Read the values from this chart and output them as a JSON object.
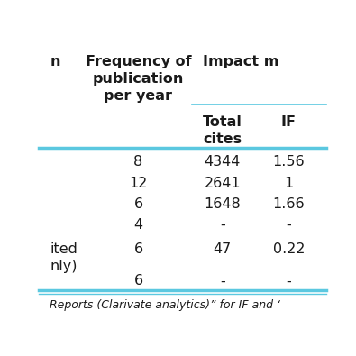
{
  "col1_header": "n",
  "col2_header": "Frequency of\npublication\nper year",
  "col3_span_header": "Impact m",
  "col3a_header": "Total\ncites",
  "col3b_header": "IF",
  "rows": [
    {
      "label": "",
      "freq": "8",
      "cites": "4344",
      "if_val": "1.56"
    },
    {
      "label": "",
      "freq": "12",
      "cites": "2641",
      "if_val": "1"
    },
    {
      "label": "",
      "freq": "6",
      "cites": "1648",
      "if_val": "1.66"
    },
    {
      "label": "",
      "freq": "4",
      "cites": "-",
      "if_val": "-"
    },
    {
      "label": "ited\nnly)",
      "freq": "6",
      "cites": "47",
      "if_val": "0.22"
    },
    {
      "label": "",
      "freq": "6",
      "cites": "-",
      "if_val": "-"
    }
  ],
  "footer_text": "Reports (Clarivate analytics)” for IF and ‘",
  "line_color": "#5bc8e0",
  "bg_color": "#ffffff",
  "text_color": "#1a1a1a",
  "font_size_header": 11.5,
  "font_size_data": 11.5,
  "font_size_footer": 9.0
}
